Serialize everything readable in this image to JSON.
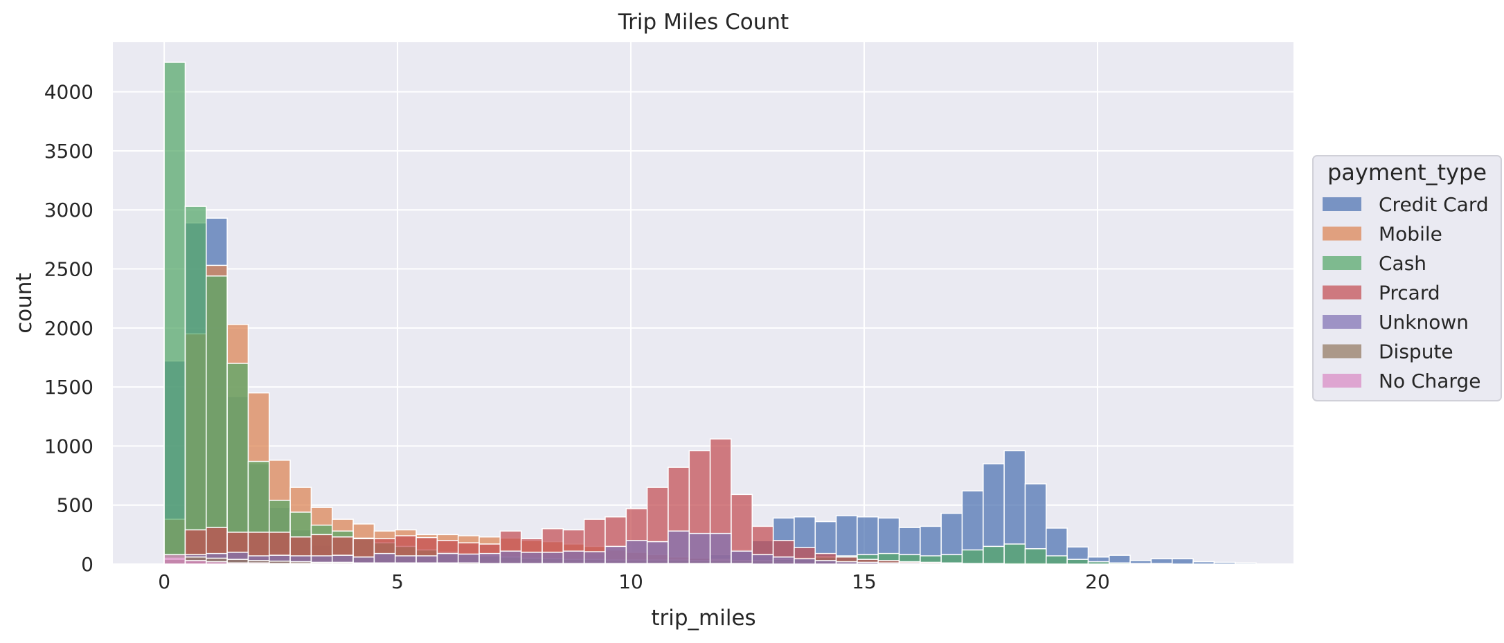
{
  "chart_data": {
    "type": "bar",
    "title": "Trip Miles Count",
    "xlabel": "trip_miles",
    "ylabel": "count",
    "xlim": [
      -1.1,
      24.2
    ],
    "ylim": [
      0,
      4420
    ],
    "xticks": [
      0,
      5,
      10,
      15,
      20
    ],
    "yticks": [
      0,
      500,
      1000,
      1500,
      2000,
      2500,
      3000,
      3500,
      4000
    ],
    "grid": true,
    "bin_width": 0.45,
    "bin_start": 0,
    "legend": {
      "title": "payment_type",
      "placement": "right",
      "entries": [
        "Credit Card",
        "Mobile",
        "Cash",
        "Prcard",
        "Unknown",
        "Dispute",
        "No Charge"
      ]
    },
    "series": [
      {
        "name": "Credit Card",
        "color": "#4c72b0",
        "values": [
          1720,
          2890,
          2930,
          1420,
          850,
          480,
          290,
          160,
          100,
          70,
          50,
          40,
          30,
          25,
          20,
          20,
          15,
          15,
          15,
          15,
          15,
          15,
          15,
          20,
          30,
          50,
          80,
          120,
          200,
          390,
          400,
          360,
          410,
          400,
          390,
          310,
          320,
          430,
          620,
          850,
          960,
          680,
          305,
          145,
          60,
          75,
          30,
          45,
          45,
          20,
          15,
          10
        ]
      },
      {
        "name": "Mobile",
        "color": "#dd8452",
        "values": [
          380,
          1950,
          2530,
          2030,
          1450,
          880,
          650,
          480,
          380,
          340,
          280,
          290,
          250,
          250,
          240,
          230,
          220,
          200,
          190,
          170,
          150,
          120,
          100,
          80,
          60,
          50,
          40,
          30,
          25,
          20,
          15,
          10,
          10,
          10,
          10,
          5,
          5,
          5,
          5,
          5,
          5,
          5,
          0,
          0,
          0,
          0,
          0,
          0,
          0,
          0,
          0,
          0
        ]
      },
      {
        "name": "Cash",
        "color": "#55a868",
        "values": [
          4250,
          3030,
          2440,
          1700,
          870,
          540,
          440,
          330,
          280,
          220,
          180,
          150,
          120,
          100,
          80,
          70,
          60,
          50,
          45,
          40,
          40,
          35,
          35,
          35,
          35,
          30,
          30,
          30,
          30,
          40,
          50,
          60,
          70,
          80,
          90,
          80,
          70,
          80,
          120,
          150,
          170,
          130,
          70,
          40,
          20,
          10,
          5,
          5,
          0,
          0,
          0,
          0
        ]
      },
      {
        "name": "Prcard",
        "color": "#c44e52",
        "values": [
          0,
          290,
          310,
          270,
          270,
          270,
          230,
          250,
          230,
          215,
          215,
          240,
          225,
          200,
          180,
          170,
          280,
          215,
          300,
          290,
          380,
          400,
          470,
          650,
          820,
          960,
          1060,
          590,
          320,
          200,
          140,
          90,
          60,
          40,
          30,
          20,
          15,
          10,
          5,
          5,
          0,
          0,
          0,
          0,
          0,
          0,
          0,
          0,
          0,
          0,
          0,
          0
        ]
      },
      {
        "name": "Unknown",
        "color": "#8172b3",
        "values": [
          50,
          80,
          90,
          100,
          70,
          75,
          70,
          70,
          75,
          60,
          90,
          70,
          70,
          90,
          85,
          90,
          110,
          100,
          100,
          110,
          105,
          150,
          200,
          190,
          280,
          260,
          260,
          110,
          80,
          60,
          45,
          30,
          20,
          15,
          10,
          10,
          5,
          5,
          0,
          0,
          0,
          0,
          0,
          0,
          0,
          0,
          0,
          0,
          0,
          0,
          0,
          0
        ]
      },
      {
        "name": "Dispute",
        "color": "#937860",
        "values": [
          40,
          60,
          50,
          40,
          30,
          25,
          20,
          15,
          15,
          10,
          10,
          10,
          10,
          10,
          10,
          5,
          5,
          5,
          5,
          5,
          5,
          5,
          5,
          5,
          5,
          5,
          5,
          5,
          0,
          0,
          0,
          0,
          0,
          0,
          0,
          0,
          0,
          0,
          0,
          0,
          0,
          0,
          0,
          0,
          0,
          0,
          0,
          0,
          0,
          0,
          0,
          0
        ]
      },
      {
        "name": "No Charge",
        "color": "#da8bc3",
        "values": [
          80,
          30,
          20,
          10,
          10,
          5,
          5,
          5,
          5,
          5,
          5,
          5,
          5,
          5,
          0,
          0,
          0,
          0,
          0,
          0,
          0,
          0,
          0,
          0,
          0,
          0,
          0,
          0,
          0,
          0,
          0,
          0,
          0,
          0,
          0,
          0,
          0,
          0,
          0,
          0,
          0,
          0,
          0,
          0,
          0,
          0,
          0,
          0,
          0,
          0,
          0,
          0
        ]
      }
    ]
  }
}
